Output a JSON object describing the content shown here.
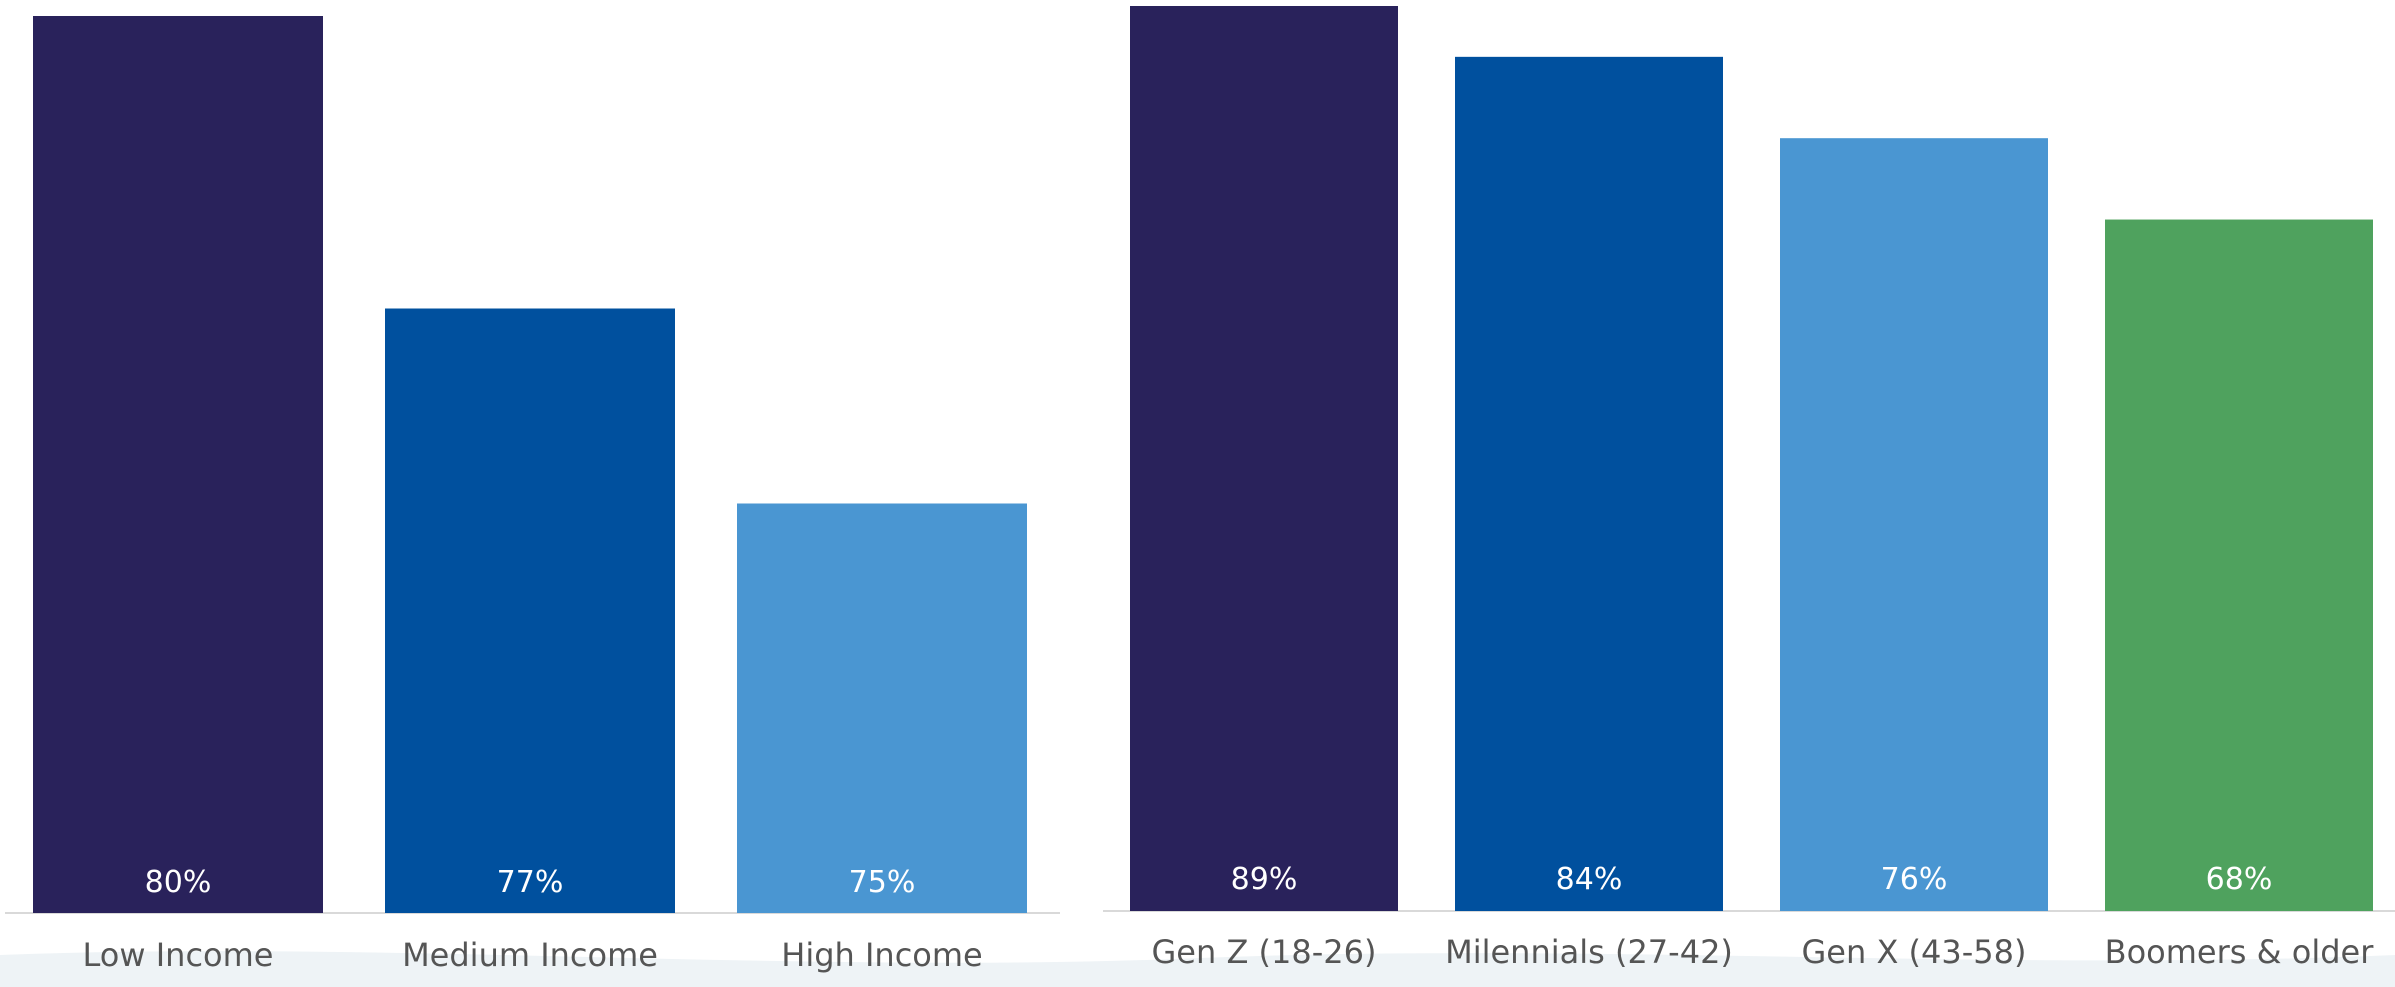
{
  "chart_data": [
    {
      "type": "bar",
      "title": "",
      "xlabel": "",
      "ylabel": "",
      "grid": false,
      "categories": [
        "Low Income",
        "Medium Income",
        "High Income"
      ],
      "values": [
        80,
        77,
        75
      ],
      "value_labels": [
        "80%",
        "77%",
        "75%"
      ],
      "colors": [
        "#29225b",
        "#00509e",
        "#4a96d2"
      ],
      "ylim": [
        70.8,
        80
      ]
    },
    {
      "type": "bar",
      "title": "",
      "xlabel": "",
      "ylabel": "",
      "grid": false,
      "categories": [
        "Gen Z (18-26)",
        "Milennials (27-42)",
        "Gen X (43-58)",
        "Boomers & older"
      ],
      "values": [
        89,
        84,
        76,
        68
      ],
      "value_labels": [
        "89%",
        "84%",
        "76%",
        "68%"
      ],
      "colors": [
        "#29225b",
        "#00509e",
        "#4a96d2",
        "#4fa25e"
      ],
      "ylim": [
        0,
        89
      ]
    }
  ]
}
